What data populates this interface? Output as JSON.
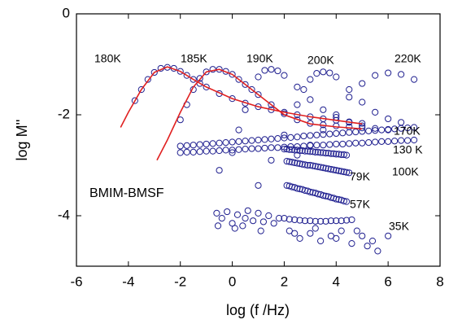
{
  "chart_data": {
    "type": "scatter",
    "xlabel": "log (f /Hz)",
    "ylabel": "log M''",
    "annotation": "BMIM-BMSF",
    "xlim": [
      -6,
      8
    ],
    "ylim": [
      -5,
      0
    ],
    "xticks": [
      -6,
      -4,
      -2,
      0,
      2,
      4,
      6,
      8
    ],
    "yticks": [
      -4,
      -2,
      0
    ],
    "series": [
      {
        "name": "180K",
        "color": "#1f1f8f",
        "style": "markers",
        "x": [
          -3.75,
          -3.5,
          -3.25,
          -3,
          -2.75,
          -2.5,
          -2.25,
          -2,
          -1.75,
          -1.5,
          -1.25,
          -1,
          -0.5,
          0,
          0.5,
          1,
          1.5,
          2,
          2.5,
          3,
          3.5,
          4,
          4.5,
          5
        ],
        "values": [
          -1.72,
          -1.5,
          -1.3,
          -1.16,
          -1.08,
          -1.06,
          -1.08,
          -1.14,
          -1.22,
          -1.3,
          -1.38,
          -1.45,
          -1.58,
          -1.68,
          -1.77,
          -1.84,
          -1.9,
          -1.95,
          -2.0,
          -2.04,
          -2.08,
          -2.11,
          -2.14,
          -2.17
        ]
      },
      {
        "name": "185K",
        "color": "#1f1f8f",
        "style": "markers",
        "x": [
          -2,
          -1.75,
          -1.5,
          -1.25,
          -1,
          -0.75,
          -0.5,
          -0.25,
          0,
          0.25,
          0.5,
          1,
          1.5,
          2,
          2.5,
          3,
          3.5,
          4,
          4.5,
          5
        ],
        "values": [
          -2.1,
          -1.8,
          -1.5,
          -1.28,
          -1.15,
          -1.1,
          -1.1,
          -1.14,
          -1.2,
          -1.3,
          -1.4,
          -1.6,
          -1.8,
          -1.98,
          -2.1,
          -2.17,
          -2.2,
          -2.22,
          -2.24,
          -2.26
        ]
      },
      {
        "name": "190K",
        "color": "#1f1f8f",
        "style": "markers",
        "x": [
          -0.5,
          0,
          0.25,
          0.5,
          0.75,
          1,
          1.25,
          1.5,
          1.75,
          2,
          2.5,
          3,
          3.5,
          4,
          4.5,
          5,
          5.5,
          6
        ],
        "values": [
          -3.1,
          -2.75,
          -2.3,
          -1.9,
          -1.5,
          -1.25,
          -1.12,
          -1.1,
          -1.13,
          -1.22,
          -1.45,
          -1.7,
          -1.9,
          -2.05,
          -2.15,
          -2.22,
          -2.27,
          -2.3
        ]
      },
      {
        "name": "200K",
        "color": "#1f1f8f",
        "style": "markers",
        "x": [
          1,
          1.5,
          2,
          2.5,
          2.75,
          3,
          3.25,
          3.5,
          3.75,
          4,
          4.5,
          5,
          5.5,
          6,
          6.5
        ],
        "values": [
          -3.4,
          -2.9,
          -2.4,
          -1.8,
          -1.5,
          -1.3,
          -1.18,
          -1.15,
          -1.17,
          -1.25,
          -1.5,
          -1.75,
          -1.95,
          -2.08,
          -2.15
        ]
      },
      {
        "name": "220K",
        "color": "#1f1f8f",
        "style": "markers",
        "x": [
          2.5,
          3,
          3.5,
          4,
          4.5,
          5,
          5.5,
          6,
          6.5,
          7
        ],
        "values": [
          -2.8,
          -2.6,
          -2.3,
          -2.0,
          -1.65,
          -1.38,
          -1.22,
          -1.17,
          -1.2,
          -1.3
        ]
      },
      {
        "name": "170K",
        "color": "#1f1f8f",
        "style": "markers",
        "x": [
          -2,
          -1.75,
          -1.5,
          -1.25,
          -1,
          -0.75,
          -0.5,
          -0.25,
          0,
          0.25,
          0.5,
          0.75,
          1,
          1.25,
          1.5,
          1.75,
          2,
          2.25,
          2.5,
          2.75,
          3,
          3.25,
          3.5,
          3.75,
          4,
          4.25,
          4.5,
          4.75,
          5,
          5.25,
          5.5,
          5.75,
          6,
          6.25,
          6.5,
          6.75,
          7
        ],
        "values": [
          -2.62,
          -2.61,
          -2.6,
          -2.59,
          -2.58,
          -2.57,
          -2.56,
          -2.55,
          -2.54,
          -2.53,
          -2.52,
          -2.51,
          -2.5,
          -2.49,
          -2.48,
          -2.47,
          -2.46,
          -2.45,
          -2.44,
          -2.42,
          -2.41,
          -2.4,
          -2.39,
          -2.38,
          -2.37,
          -2.36,
          -2.35,
          -2.34,
          -2.33,
          -2.32,
          -2.31,
          -2.3,
          -2.29,
          -2.28,
          -2.27,
          -2.26,
          -2.25
        ]
      },
      {
        "name": "130 K",
        "color": "#1f1f8f",
        "style": "markers",
        "x": [
          -2,
          -1.75,
          -1.5,
          -1.25,
          -1,
          -0.75,
          -0.5,
          -0.25,
          0,
          0.25,
          0.5,
          0.75,
          1,
          1.25,
          1.5,
          1.75,
          2,
          2.25,
          2.5,
          2.75,
          3,
          3.25,
          3.5,
          3.75,
          4,
          4.25,
          4.5,
          4.75,
          5,
          5.25,
          5.5,
          5.75,
          6,
          6.25,
          6.5,
          6.75,
          7
        ],
        "values": [
          -2.75,
          -2.74,
          -2.74,
          -2.73,
          -2.72,
          -2.72,
          -2.71,
          -2.7,
          -2.7,
          -2.69,
          -2.68,
          -2.67,
          -2.67,
          -2.66,
          -2.65,
          -2.65,
          -2.64,
          -2.63,
          -2.63,
          -2.62,
          -2.61,
          -2.6,
          -2.6,
          -2.59,
          -2.58,
          -2.58,
          -2.57,
          -2.56,
          -2.56,
          -2.55,
          -2.54,
          -2.53,
          -2.53,
          -2.52,
          -2.51,
          -2.51,
          -2.5
        ]
      },
      {
        "name": "100K",
        "color": "#1f1f8f",
        "style": "markers",
        "x": [
          2.0,
          2.1,
          2.2,
          2.3,
          2.4,
          2.5,
          2.6,
          2.7,
          2.8,
          2.9,
          3.0,
          3.1,
          3.2,
          3.3,
          3.4,
          3.5,
          3.6,
          3.7,
          3.8,
          3.9,
          4.0,
          4.1,
          4.2,
          4.3,
          4.4
        ],
        "values": [
          -2.68,
          -2.68,
          -2.69,
          -2.69,
          -2.7,
          -2.7,
          -2.71,
          -2.71,
          -2.72,
          -2.72,
          -2.73,
          -2.73,
          -2.74,
          -2.74,
          -2.75,
          -2.75,
          -2.76,
          -2.76,
          -2.77,
          -2.77,
          -2.78,
          -2.78,
          -2.79,
          -2.79,
          -2.8
        ]
      },
      {
        "name": "79K",
        "color": "#1f1f8f",
        "style": "markers",
        "x": [
          2.1,
          2.2,
          2.3,
          2.4,
          2.5,
          2.6,
          2.7,
          2.8,
          2.9,
          3.0,
          3.1,
          3.2,
          3.3,
          3.4,
          3.5,
          3.6,
          3.7,
          3.8,
          3.9,
          4.0,
          4.1,
          4.2,
          4.3,
          4.4,
          4.5
        ],
        "values": [
          -2.92,
          -2.93,
          -2.94,
          -2.95,
          -2.96,
          -2.97,
          -2.98,
          -2.99,
          -3.0,
          -3.0,
          -3.01,
          -3.02,
          -3.03,
          -3.04,
          -3.05,
          -3.06,
          -3.07,
          -3.08,
          -3.09,
          -3.1,
          -3.11,
          -3.12,
          -3.13,
          -3.14,
          -3.15
        ]
      },
      {
        "name": "57K",
        "color": "#1f1f8f",
        "style": "markers",
        "x": [
          2.1,
          2.2,
          2.3,
          2.4,
          2.5,
          2.6,
          2.7,
          2.8,
          2.9,
          3.0,
          3.1,
          3.2,
          3.3,
          3.4,
          3.5,
          3.6,
          3.7,
          3.8,
          3.9,
          4.0,
          4.1,
          4.2,
          4.3,
          4.4
        ],
        "values": [
          -3.4,
          -3.41,
          -3.43,
          -3.44,
          -3.46,
          -3.47,
          -3.48,
          -3.5,
          -3.51,
          -3.53,
          -3.54,
          -3.55,
          -3.57,
          -3.58,
          -3.6,
          -3.61,
          -3.62,
          -3.64,
          -3.65,
          -3.67,
          -3.68,
          -3.69,
          -3.71,
          -3.72
        ]
      },
      {
        "name": "35K",
        "color": "#1f1f8f",
        "style": "markers",
        "x": [
          2,
          2.2,
          2.4,
          2.6,
          2.8,
          3,
          3.2,
          3.4,
          3.6,
          3.8,
          4,
          4.2,
          4.4,
          4.6,
          -0.6,
          -0.4,
          -0.2,
          0,
          0.2,
          0.4,
          0.6,
          0.8,
          1.0,
          1.2,
          1.4,
          1.6,
          1.8,
          2.2,
          2.6,
          3.0,
          3.4,
          3.8,
          4.2,
          4.6,
          5.0,
          5.2,
          5.4,
          5.6,
          6.0,
          -0.55,
          0.1,
          0.5,
          1.1,
          2.4,
          3.2,
          4.0,
          4.8
        ],
        "values": [
          -4.05,
          -4.07,
          -4.08,
          -4.09,
          -4.1,
          -4.1,
          -4.11,
          -4.11,
          -4.11,
          -4.1,
          -4.1,
          -4.1,
          -4.09,
          -4.08,
          -3.95,
          -4.05,
          -3.92,
          -4.15,
          -3.98,
          -4.2,
          -3.9,
          -4.1,
          -3.95,
          -4.12,
          -4.0,
          -4.15,
          -4.05,
          -4.3,
          -4.45,
          -4.35,
          -4.5,
          -4.4,
          -4.3,
          -4.55,
          -4.4,
          -4.6,
          -4.5,
          -4.7,
          -4.4,
          -4.2,
          -4.25,
          -4.05,
          -4.3,
          -4.35,
          -4.25,
          -4.45,
          -4.3
        ]
      },
      {
        "color": "#e02020",
        "style": "line",
        "x": [
          -4.3,
          -4,
          -3.5,
          -3,
          -2.5,
          -2,
          -1.5,
          -1,
          0,
          1,
          2,
          3,
          4,
          5
        ],
        "values": [
          -2.25,
          -1.95,
          -1.5,
          -1.16,
          -1.05,
          -1.14,
          -1.3,
          -1.45,
          -1.68,
          -1.84,
          -1.95,
          -2.04,
          -2.11,
          -2.18
        ]
      },
      {
        "color": "#e02020",
        "style": "line",
        "x": [
          -2.9,
          -2.5,
          -2,
          -1.5,
          -1,
          -0.5,
          0,
          0.5,
          1,
          1.5,
          2,
          3,
          4,
          5
        ],
        "values": [
          -2.9,
          -2.5,
          -1.95,
          -1.45,
          -1.15,
          -1.1,
          -1.2,
          -1.4,
          -1.6,
          -1.8,
          -2.0,
          -2.18,
          -2.24,
          -2.28
        ]
      }
    ]
  }
}
